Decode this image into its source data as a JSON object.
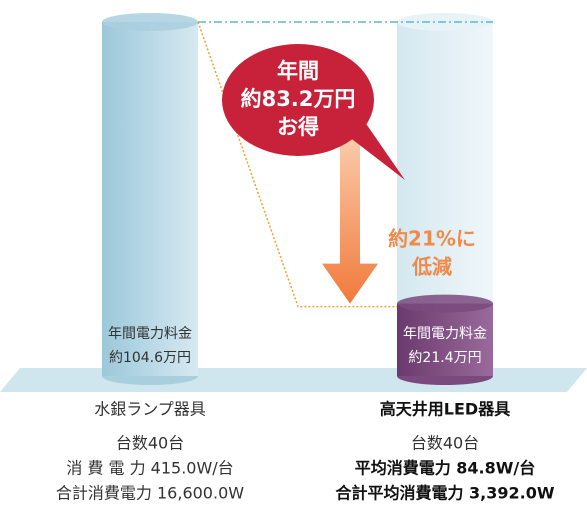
{
  "chart_data": {
    "type": "cylinder",
    "categories": [
      "水銀ランプ器具",
      "高天井用LED器具"
    ],
    "values": [
      104.6,
      21.4
    ],
    "value_labels": [
      "約104.6万円",
      "約21.4万円"
    ],
    "value_captions": [
      "年間電力料金",
      "年間電力料金"
    ],
    "colors": [
      "#a9cfdf",
      "#7a4a7e"
    ],
    "savings_callout": [
      "年間",
      "約83.2万円",
      "お得"
    ],
    "reduction_note": [
      "約21%に",
      "低減"
    ],
    "specs": [
      [
        "台数40台",
        "消 費 電 力 415.0W/台",
        "合計消費電力 16,600.0W"
      ],
      [
        "台数40台",
        "平均消費電力 84.8W/台",
        "合計平均消費電力 3,392.0W"
      ]
    ]
  }
}
